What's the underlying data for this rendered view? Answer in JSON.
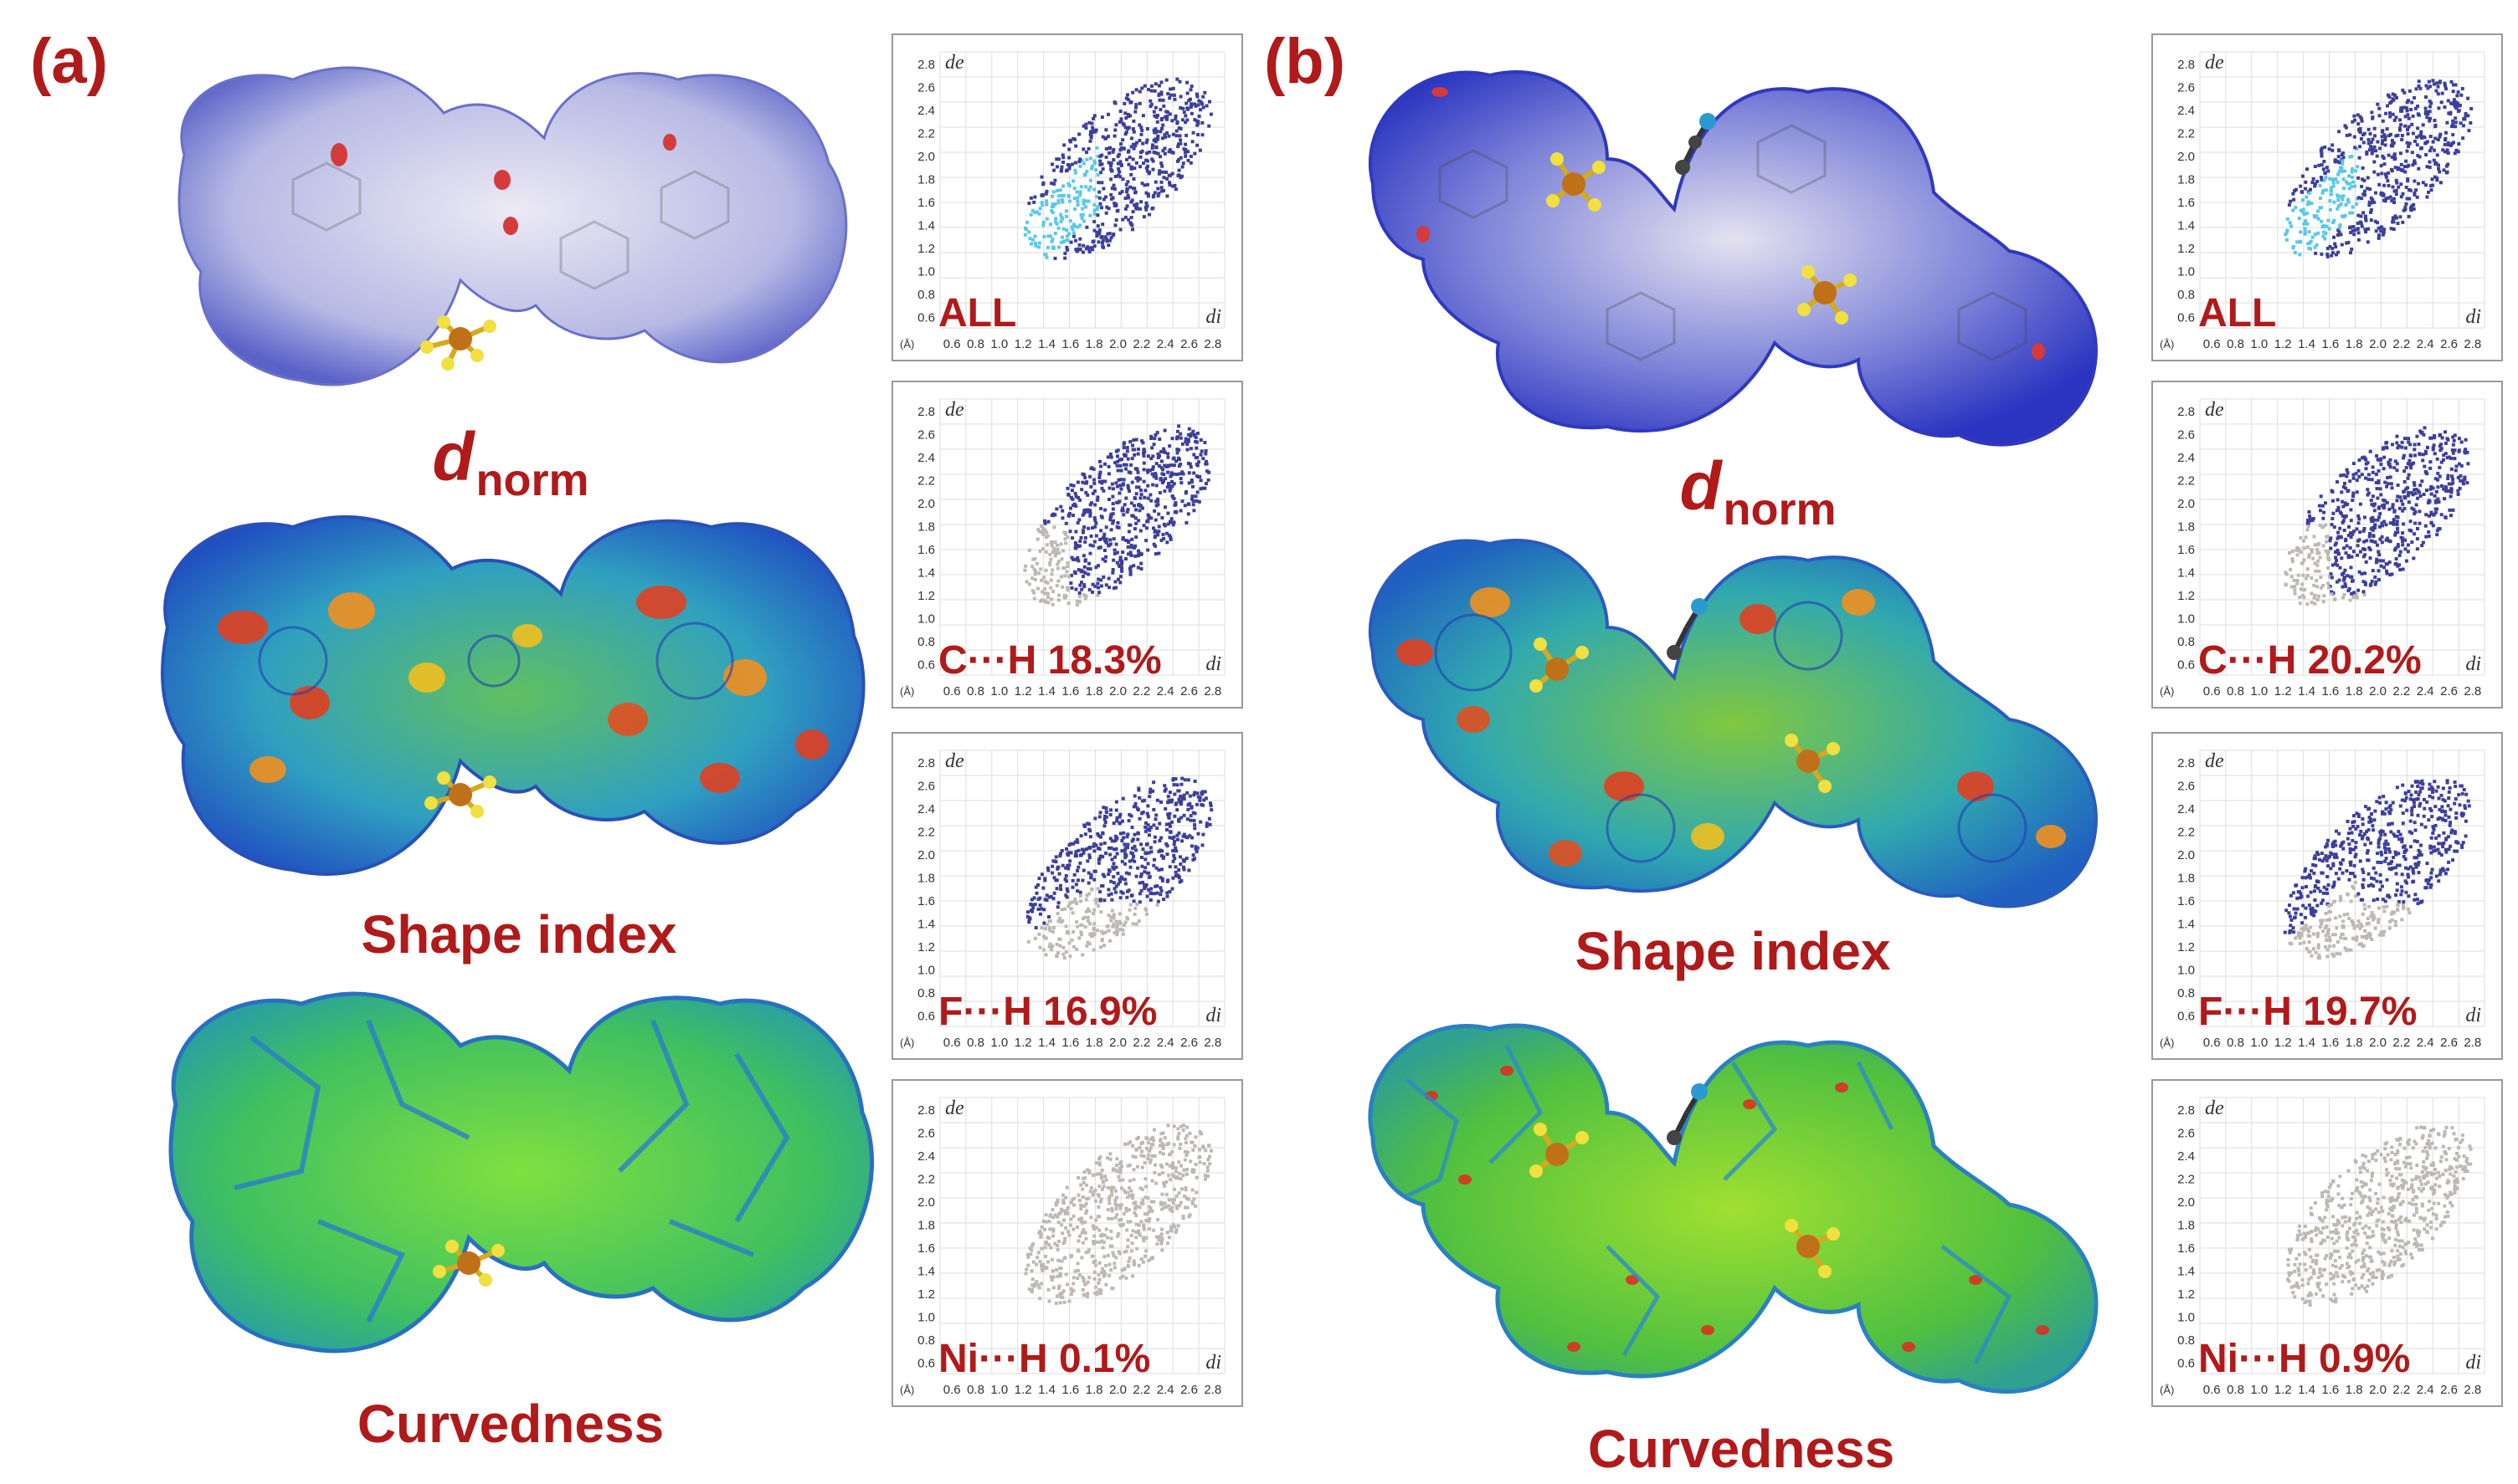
{
  "panels": [
    {
      "label": "(a)",
      "captions": {
        "dnorm_main": "d",
        "dnorm_sub": "norm",
        "shape_index": "Shape index",
        "curvedness": "Curvedness"
      },
      "fingerprints": [
        {
          "label": "ALL",
          "type": "all"
        },
        {
          "label": "C···H 18.3%",
          "type": "ch"
        },
        {
          "label": "F···H 16.9%",
          "type": "fh"
        },
        {
          "label": "Ni···H 0.1%",
          "type": "nih"
        }
      ]
    },
    {
      "label": "(b)",
      "captions": {
        "dnorm_main": "d",
        "dnorm_sub": "norm",
        "shape_index": "Shape index",
        "curvedness": "Curvedness"
      },
      "fingerprints": [
        {
          "label": "ALL",
          "type": "all"
        },
        {
          "label": "C···H 20.2%",
          "type": "ch"
        },
        {
          "label": "F···H 19.7%",
          "type": "fh"
        },
        {
          "label": "Ni···H 0.9%",
          "type": "nih"
        }
      ]
    }
  ],
  "fingerprint_axes": {
    "y_title": "de",
    "x_title": "di",
    "unit": "(Å)",
    "y_ticks": [
      "0.6",
      "0.8",
      "1.0",
      "1.2",
      "1.4",
      "1.6",
      "1.8",
      "2.0",
      "2.2",
      "2.4",
      "2.6",
      "2.8"
    ],
    "x_ticks": [
      "0.6",
      "0.8",
      "1.0",
      "1.2",
      "1.4",
      "1.6",
      "1.8",
      "2.0",
      "2.2",
      "2.4",
      "2.6",
      "2.8"
    ]
  },
  "colors": {
    "label_red": "#b01a1a",
    "fingerprint_blue": "#3c3f9a",
    "fingerprint_gray": "#bdb8b3",
    "fingerprint_cyan": "#5ac8e8"
  }
}
